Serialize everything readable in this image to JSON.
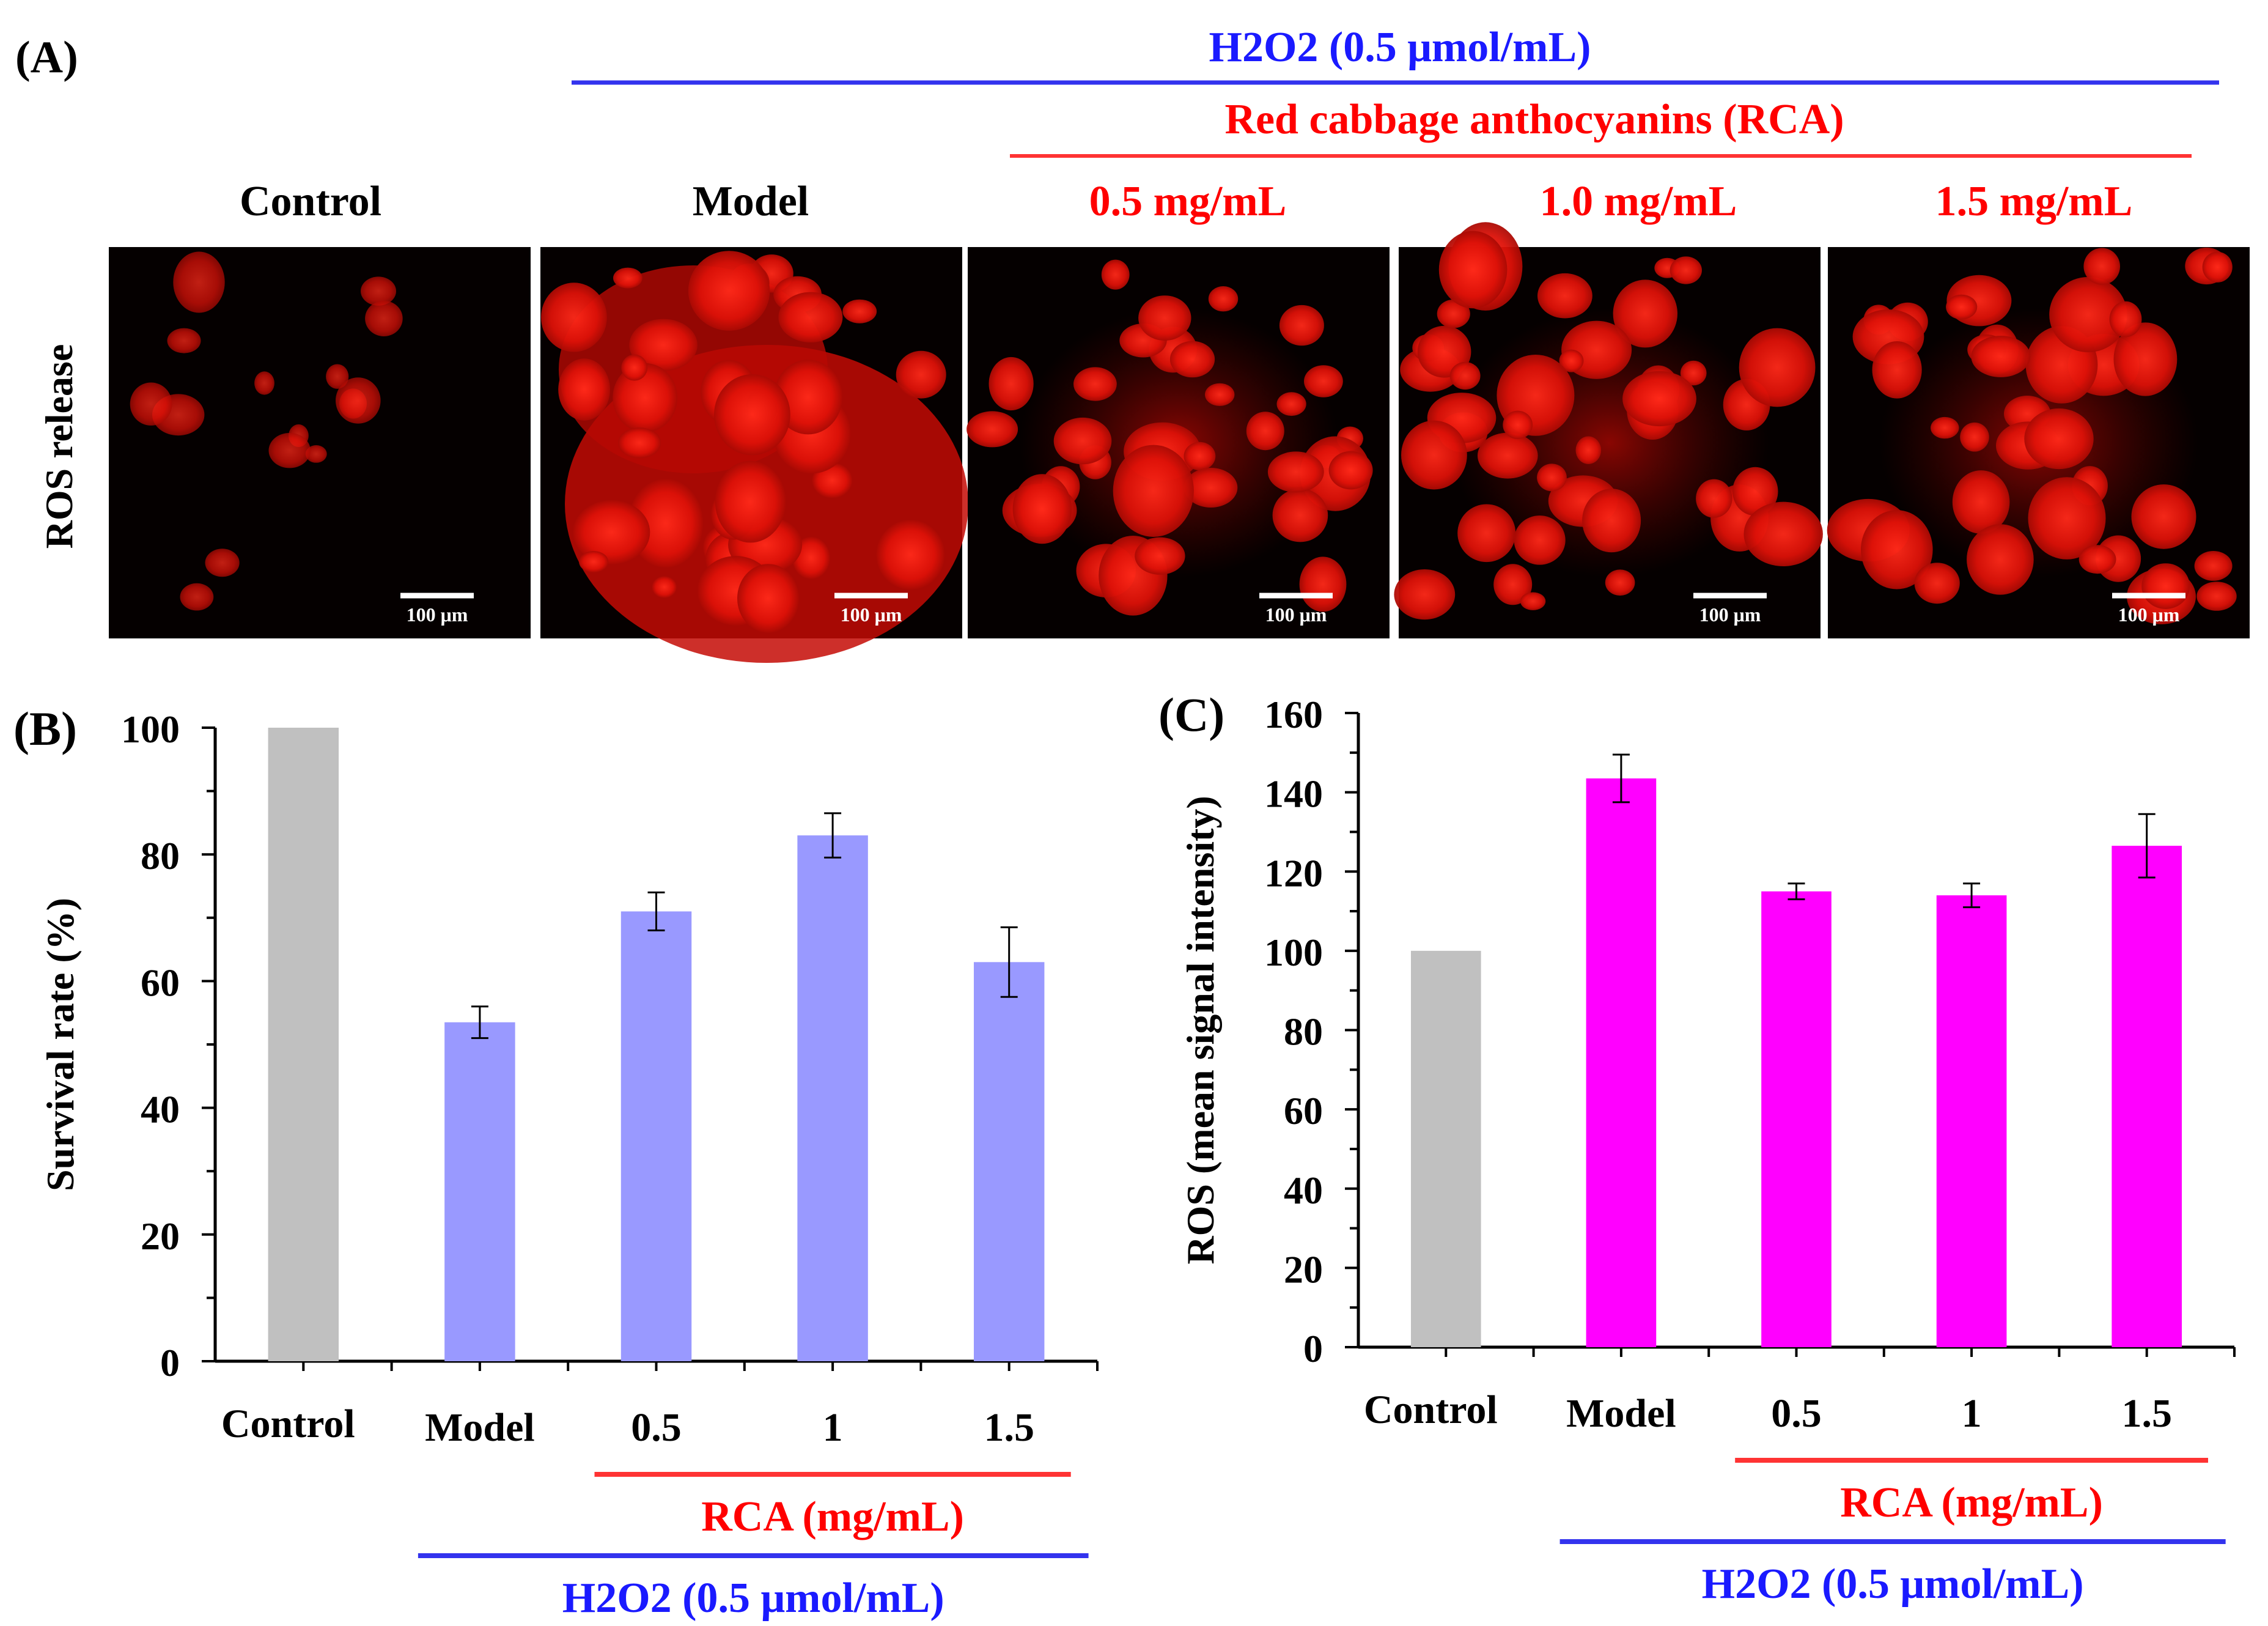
{
  "panel_a": {
    "label": "(A)",
    "h2o2_label": "H2O2 (0.5 μmol/mL)",
    "rca_label": "Red cabbage anthocyanins  (RCA)",
    "row_label": "ROS release",
    "scale_bar": "100 μm",
    "columns": [
      {
        "label": "Control",
        "color": "#000000"
      },
      {
        "label": "Model",
        "color": "#000000"
      },
      {
        "label": "0.5 mg/mL",
        "color": "#ff0000"
      },
      {
        "label": "1.0  mg/mL",
        "color": "#ff0000"
      },
      {
        "label": "1.5 mg/mL",
        "color": "#ff0000"
      }
    ]
  },
  "colors": {
    "blue_text": "#1a1aff",
    "blue_line": "#3333ee",
    "red_text": "#ff0000",
    "red_line": "#ff3333",
    "control_bar": "#c0c0c0",
    "survival_bar": "#9999ff",
    "ros_bar": "#ff00ff"
  },
  "chart_data": [
    {
      "panel": "(B)",
      "type": "bar",
      "title": "",
      "xlabel": "",
      "ylabel": "Survival rate (%)",
      "categories": [
        "Control",
        "Model",
        "0.5",
        "1",
        "1.5"
      ],
      "values": [
        100,
        53.5,
        71,
        83,
        63
      ],
      "errors": [
        0,
        2.5,
        3,
        3.5,
        5.5
      ],
      "bar_colors": [
        "#c0c0c0",
        "#9999ff",
        "#9999ff",
        "#9999ff",
        "#9999ff"
      ],
      "ylim": [
        0,
        100
      ],
      "yticks": [
        "0",
        "20",
        "40",
        "60",
        "80",
        "100"
      ],
      "group_labels": {
        "rca": "RCA (mg/mL)",
        "h2o2": "H2O2 (0.5 μmol/mL)"
      }
    },
    {
      "panel": "(C)",
      "type": "bar",
      "title": "",
      "xlabel": "",
      "ylabel": "ROS (mean signal intensity)",
      "categories": [
        "Control",
        "Model",
        "0.5",
        "1",
        "1.5"
      ],
      "values": [
        100,
        143.5,
        115,
        114,
        126.5
      ],
      "errors": [
        0,
        6,
        2,
        3,
        8
      ],
      "bar_colors": [
        "#c0c0c0",
        "#ff00ff",
        "#ff00ff",
        "#ff00ff",
        "#ff00ff"
      ],
      "ylim": [
        0,
        160
      ],
      "yticks": [
        "0",
        "20",
        "40",
        "60",
        "80",
        "100",
        "120",
        "140",
        "160"
      ],
      "group_labels": {
        "rca": "RCA (mg/mL)",
        "h2o2": "H2O2 (0.5 μmol/mL)"
      }
    }
  ]
}
